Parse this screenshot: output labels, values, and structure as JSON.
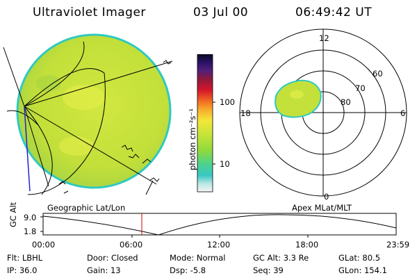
{
  "header": {
    "title": "Ultraviolet Imager",
    "date": "03 Jul 00",
    "time": "06:49:42 UT"
  },
  "colorbar": {
    "label": "photon cm⁻²s⁻¹",
    "ticks": [
      "100",
      "10"
    ]
  },
  "polar": {
    "mlt_labels": {
      "top": "12",
      "left": "18",
      "right": "6",
      "bottom": "0"
    },
    "mlat_labels": [
      "60",
      "70",
      "80"
    ]
  },
  "timeline": {
    "y_axis_label": "GC Alt",
    "y_ticks": [
      "9.0",
      "1.8"
    ],
    "left_caption": "Geographic Lat/Lon",
    "right_caption": "Apex MLat/MLT",
    "x_ticks": [
      "00:00",
      "06:00",
      "12:00",
      "18:00",
      "23:59"
    ]
  },
  "info": {
    "row1": {
      "filter": "Flt: LBHL",
      "door": "Door: Closed",
      "mode": "Mode: Normal",
      "gc_alt": "GC Alt: 3.3 Re",
      "glat": "GLat:  80.5"
    },
    "row2": {
      "ip": "IP: 36.0",
      "gain": "Gain: 13",
      "dsp": "Dsp:    -5.8",
      "seq": "Seq: 39",
      "glon": "GLon: 154.1"
    }
  },
  "colors": {
    "disk_main": "#c6e23a",
    "disk_edge": "#2fc9c0",
    "marker": "#cc0000"
  }
}
